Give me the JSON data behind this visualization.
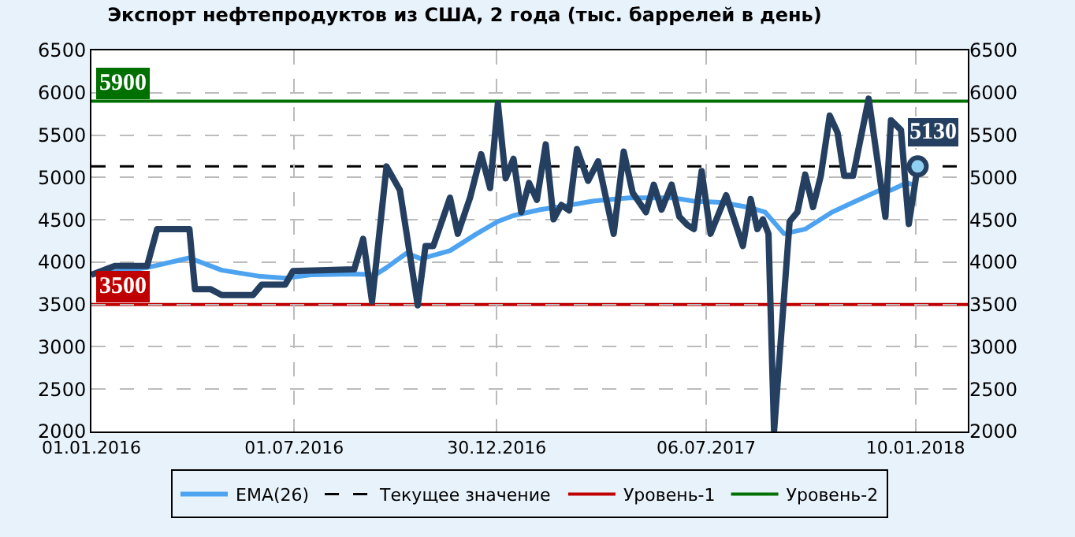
{
  "chart_data": {
    "type": "line",
    "title": "Экспорт нефтепродуктов из США, 2 года (тыс. баррелей в день)",
    "series": [
      {
        "color": "#243f60",
        "x": [
          "2016-01-01",
          "2016-01-22",
          "2016-02-20",
          "2016-02-29",
          "2016-03-29",
          "2016-04-03",
          "2016-04-17",
          "2016-04-27",
          "2016-05-25",
          "2016-06-02",
          "2016-06-23",
          "2016-06-30",
          "2016-08-24",
          "2016-09-01",
          "2016-09-09",
          "2016-09-22",
          "2016-10-04",
          "2016-10-20",
          "2016-10-27",
          "2016-11-03",
          "2016-11-18",
          "2016-11-25",
          "2016-12-06",
          "2016-12-16",
          "2016-12-24",
          "2016-12-31",
          "2017-01-07",
          "2017-01-14",
          "2017-01-21",
          "2017-01-28",
          "2017-02-04",
          "2017-02-12",
          "2017-02-19",
          "2017-02-26",
          "2017-03-05",
          "2017-03-12",
          "2017-03-22",
          "2017-03-31",
          "2017-04-14",
          "2017-04-23",
          "2017-05-01",
          "2017-05-13",
          "2017-05-20",
          "2017-05-27",
          "2017-06-05",
          "2017-06-12",
          "2017-06-19",
          "2017-06-25",
          "2017-07-02",
          "2017-07-10",
          "2017-07-24",
          "2017-08-08",
          "2017-08-15",
          "2017-08-21",
          "2017-08-26",
          "2017-08-31",
          "2017-09-05",
          "2017-09-19",
          "2017-09-26",
          "2017-10-03",
          "2017-10-10",
          "2017-10-17",
          "2017-10-25",
          "2017-11-01",
          "2017-11-07",
          "2017-11-15",
          "2017-11-29",
          "2017-12-14",
          "2017-12-19",
          "2017-12-28",
          "2018-01-04",
          "2018-01-12"
        ],
        "values": [
          3850,
          3955,
          3955,
          4390,
          4390,
          3680,
          3680,
          3610,
          3610,
          3735,
          3735,
          3895,
          3915,
          4275,
          3535,
          5130,
          4850,
          3490,
          4190,
          4190,
          4760,
          4335,
          4760,
          5275,
          4875,
          5875,
          4990,
          5220,
          4590,
          4935,
          4735,
          5390,
          4505,
          4675,
          4610,
          5335,
          4960,
          5190,
          4335,
          5305,
          4820,
          4590,
          4915,
          4620,
          4915,
          4535,
          4440,
          4390,
          5075,
          4335,
          4790,
          4190,
          4745,
          4390,
          4505,
          4335,
          2000,
          4480,
          4590,
          5035,
          4650,
          5020,
          5730,
          5530,
          5020,
          5020,
          5930,
          4535,
          5675,
          5560,
          4450,
          5130
        ]
      },
      {
        "name": "EMA(26)",
        "color": "#4da3ef",
        "x": [
          "2016-01-01",
          "2016-02-20",
          "2016-03-29",
          "2016-04-27",
          "2016-05-30",
          "2016-06-23",
          "2016-07-16",
          "2016-08-24",
          "2016-09-12",
          "2016-09-22",
          "2016-10-10",
          "2016-10-23",
          "2016-11-18",
          "2016-12-12",
          "2016-12-31",
          "2017-01-14",
          "2017-02-07",
          "2017-03-02",
          "2017-03-26",
          "2017-04-28",
          "2017-06-06",
          "2017-06-25",
          "2017-07-19",
          "2017-08-12",
          "2017-08-28",
          "2017-09-14",
          "2017-10-03",
          "2017-10-27",
          "2017-11-15",
          "2017-12-09",
          "2017-12-19",
          "2018-01-02",
          "2018-01-12"
        ],
        "values": [
          3850,
          3935,
          4050,
          3905,
          3835,
          3810,
          3850,
          3860,
          3850,
          3935,
          4105,
          4040,
          4135,
          4335,
          4480,
          4550,
          4620,
          4665,
          4720,
          4760,
          4760,
          4720,
          4705,
          4650,
          4590,
          4335,
          4390,
          4590,
          4705,
          4850,
          4850,
          4935,
          4905
        ]
      }
    ],
    "ref_lines": [
      {
        "axis": "y",
        "value": 5130,
        "label": "Текущее значение",
        "color": "#000000",
        "line_style": "dashed"
      },
      {
        "axis": "y",
        "value": 3500,
        "label": "Уровень-1",
        "color": "#c00000",
        "line_style": "solid"
      },
      {
        "axis": "y",
        "value": 5900,
        "label": "Уровень-2",
        "color": "#007000",
        "line_style": "solid"
      }
    ],
    "annotations": [
      {
        "text": "5130",
        "x": "2018-01-12",
        "y": 5130
      },
      {
        "text": "3500",
        "x": "2016-01-01",
        "y": 3500
      },
      {
        "text": "5900",
        "x": "2016-01-01",
        "y": 5900
      }
    ],
    "xlim": [
      "2016-01-01",
      "2018-02-26"
    ],
    "xticks": [
      {
        "value": "2016-01-01",
        "label": "01.01.2016"
      },
      {
        "value": "2016-07-01",
        "label": "01.07.2016"
      },
      {
        "value": "2016-12-30",
        "label": "30.12.2016"
      },
      {
        "value": "2017-07-06",
        "label": "06.07.2017"
      },
      {
        "value": "2018-01-10",
        "label": "10.01.2018"
      }
    ],
    "ylim": [
      2000,
      6500
    ],
    "yticks": [
      2000,
      2500,
      3000,
      3500,
      4000,
      4500,
      5000,
      5500,
      6000,
      6500
    ],
    "y2lim": [
      2000,
      6500
    ],
    "y2ticks": [
      2000,
      2500,
      3000,
      3500,
      4000,
      4500,
      5000,
      5500,
      6000,
      6500
    ],
    "grid": true,
    "legend": "bottom"
  }
}
